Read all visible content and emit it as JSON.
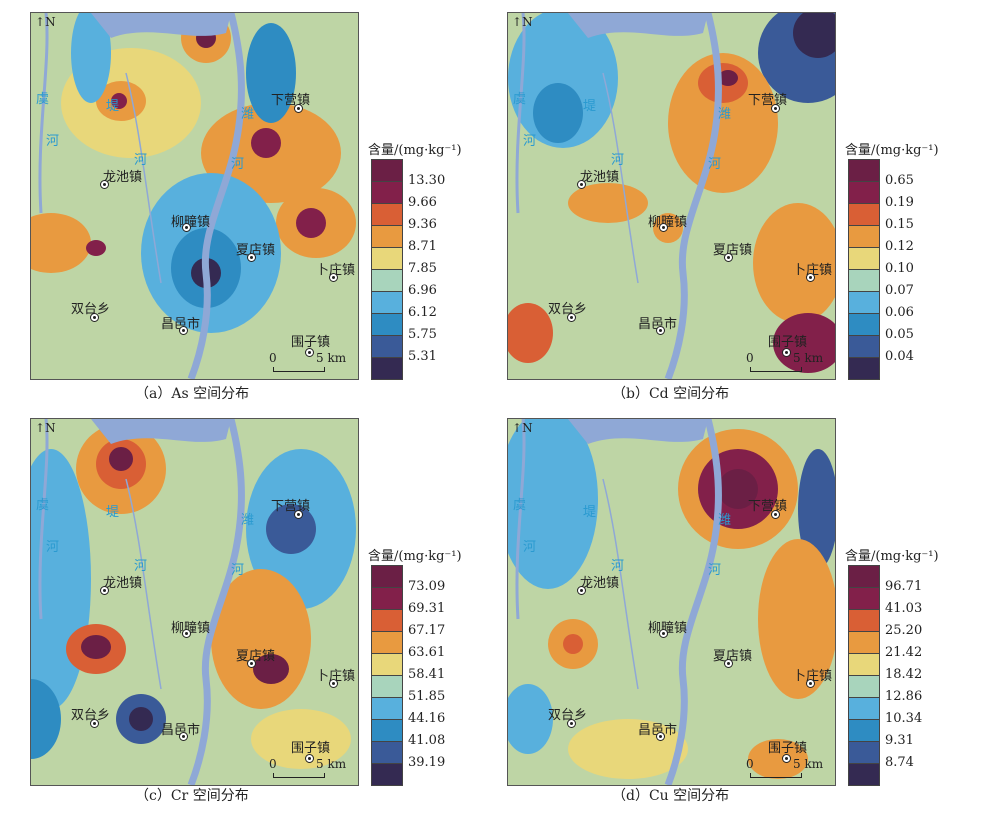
{
  "legend_title": "含量/(mg·kg⁻¹)",
  "colors": [
    "#6b1f45",
    "#82204a",
    "#d95f35",
    "#e89a40",
    "#e8d77a",
    "#a8d4bc",
    "#58b0dd",
    "#2e8cc2",
    "#3a5a98",
    "#342a52"
  ],
  "north": "N",
  "scale": {
    "zero": "0",
    "five": "5 km"
  },
  "towns": [
    "下营镇",
    "龙池镇",
    "柳疃镇",
    "夏店镇",
    "卜庄镇",
    "双台乡",
    "昌邑市",
    "围子镇"
  ],
  "water_labels": [
    "虞",
    "河",
    "堤",
    "河",
    "潍",
    "河"
  ],
  "panels": [
    {
      "caption": "（a）As 空间分布",
      "values": [
        "13.30",
        "9.66",
        "9.36",
        "8.71",
        "7.85",
        "6.96",
        "6.12",
        "5.75",
        "5.31"
      ]
    },
    {
      "caption": "（b）Cd 空间分布",
      "values": [
        "0.65",
        "0.19",
        "0.15",
        "0.12",
        "0.10",
        "0.07",
        "0.06",
        "0.05",
        "0.04"
      ]
    },
    {
      "caption": "（c）Cr 空间分布",
      "values": [
        "73.09",
        "69.31",
        "67.17",
        "63.61",
        "58.41",
        "51.85",
        "44.16",
        "41.08",
        "39.19"
      ]
    },
    {
      "caption": "（d）Cu 空间分布",
      "values": [
        "96.71",
        "41.03",
        "25.20",
        "21.42",
        "18.42",
        "12.86",
        "10.34",
        "9.31",
        "8.74"
      ]
    }
  ]
}
